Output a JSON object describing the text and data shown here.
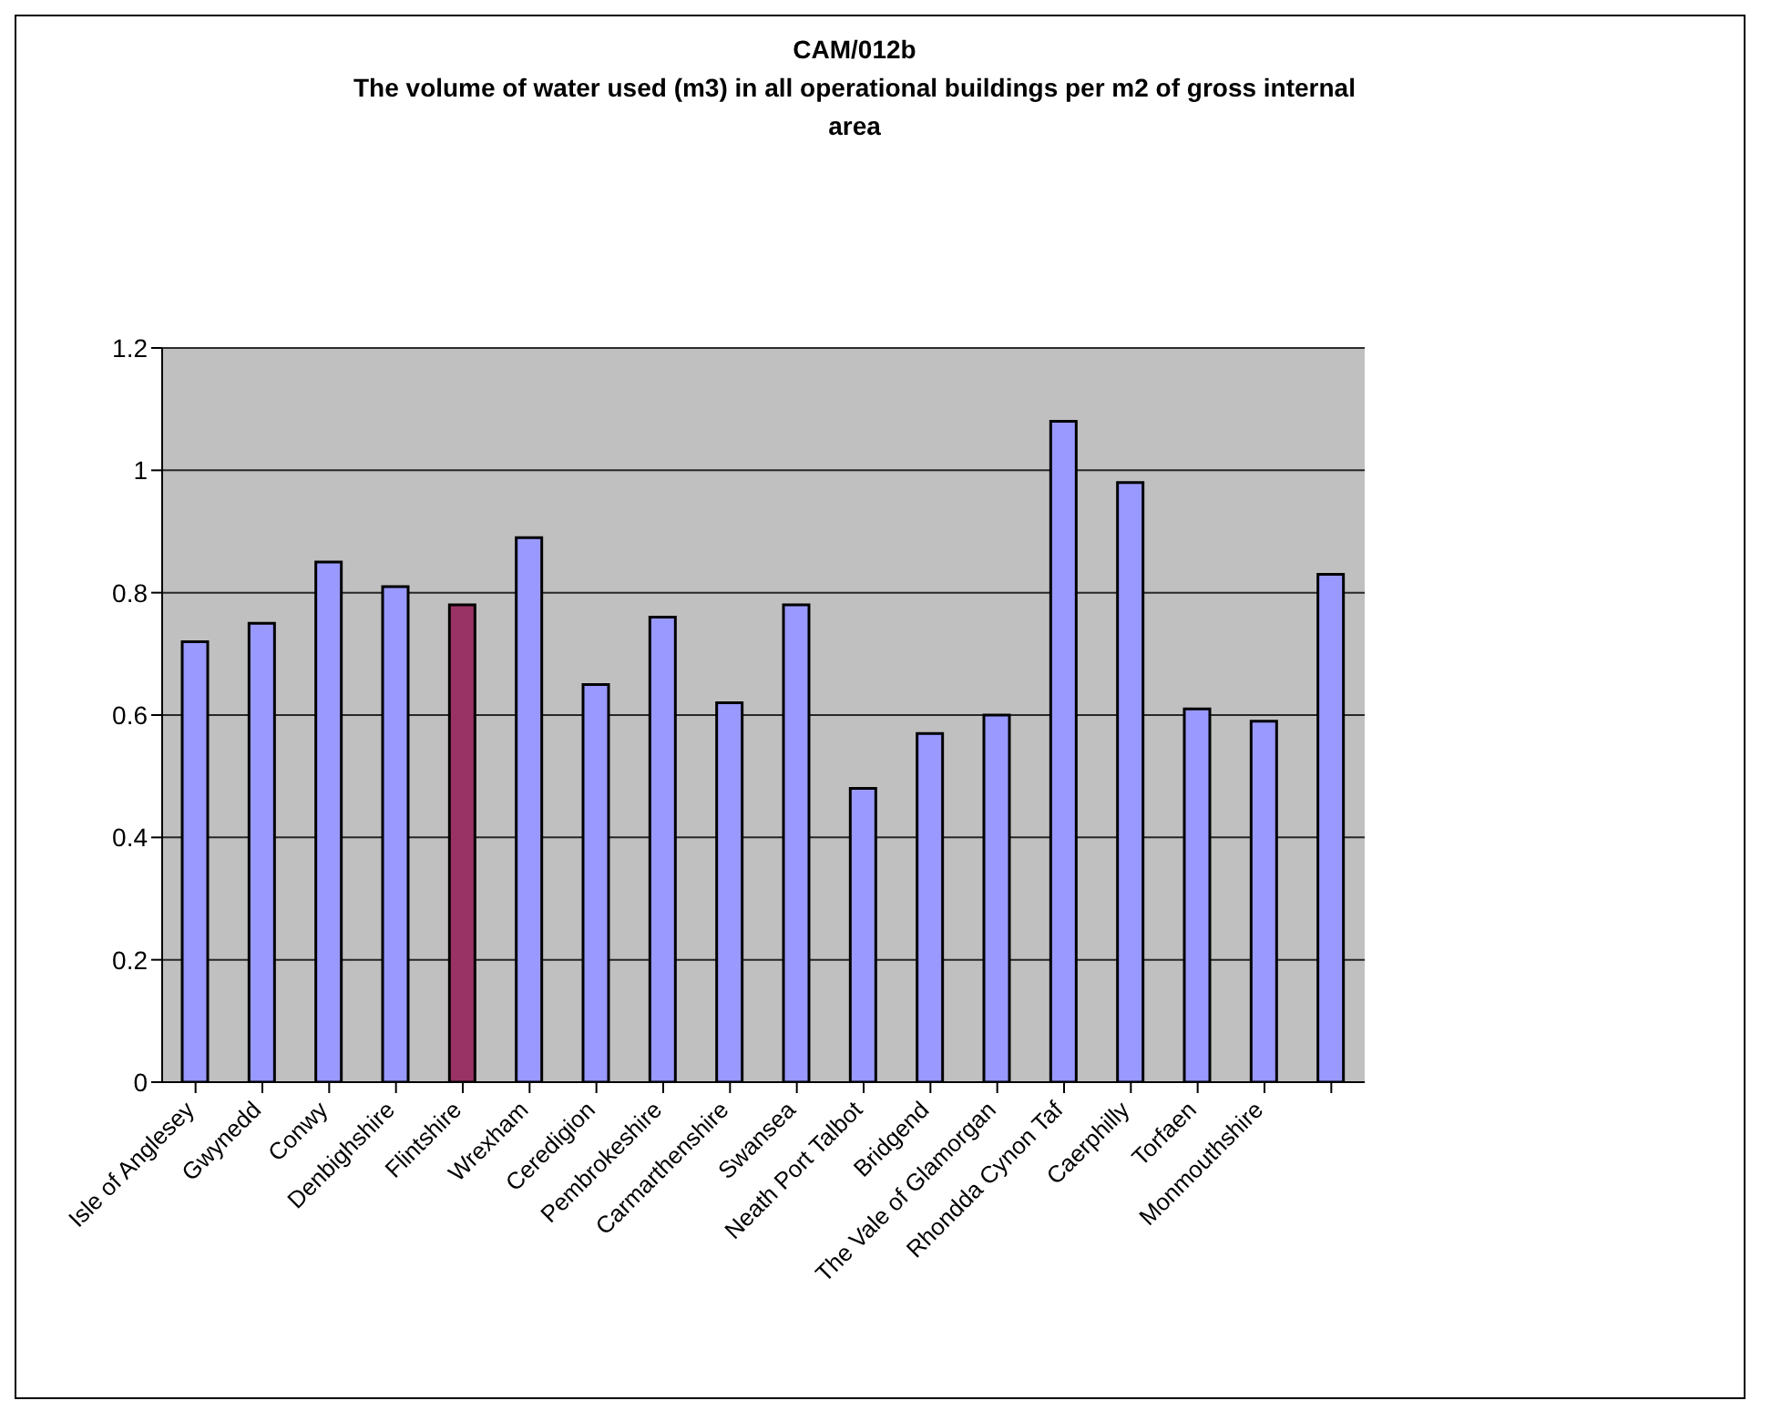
{
  "chart_data": {
    "type": "bar",
    "title": "CAM/012b",
    "subtitle": "The volume of water used (m3) in all operational buildings per m2 of gross internal area",
    "categories": [
      "Isle of Anglesey",
      "Gwynedd",
      "Conwy",
      "Denbighshire",
      "Flintshire",
      "Wrexham",
      "Ceredigion",
      "Pembrokeshire",
      "Carmarthenshire",
      "Swansea",
      "Neath Port Talbot",
      "Bridgend",
      "The Vale of Glamorgan",
      "Rhondda Cynon Taf",
      "Caerphilly",
      "Torfaen",
      "Monmouthshire",
      null
    ],
    "values": [
      0.72,
      0.75,
      0.85,
      0.81,
      0.78,
      0.89,
      0.65,
      0.76,
      0.62,
      0.78,
      0.48,
      0.57,
      0.6,
      1.08,
      0.98,
      0.61,
      0.59,
      0.83
    ],
    "colors": [
      "#9999ff",
      "#9999ff",
      "#9999ff",
      "#9999ff",
      "#993366",
      "#9999ff",
      "#9999ff",
      "#9999ff",
      "#9999ff",
      "#9999ff",
      "#9999ff",
      "#9999ff",
      "#9999ff",
      "#9999ff",
      "#9999ff",
      "#9999ff",
      "#9999ff",
      "#9999ff"
    ],
    "ylim": [
      0,
      1.2
    ],
    "yticks": [
      0,
      0.2,
      0.4,
      0.6,
      0.8,
      1,
      1.2
    ],
    "grid": "y"
  }
}
